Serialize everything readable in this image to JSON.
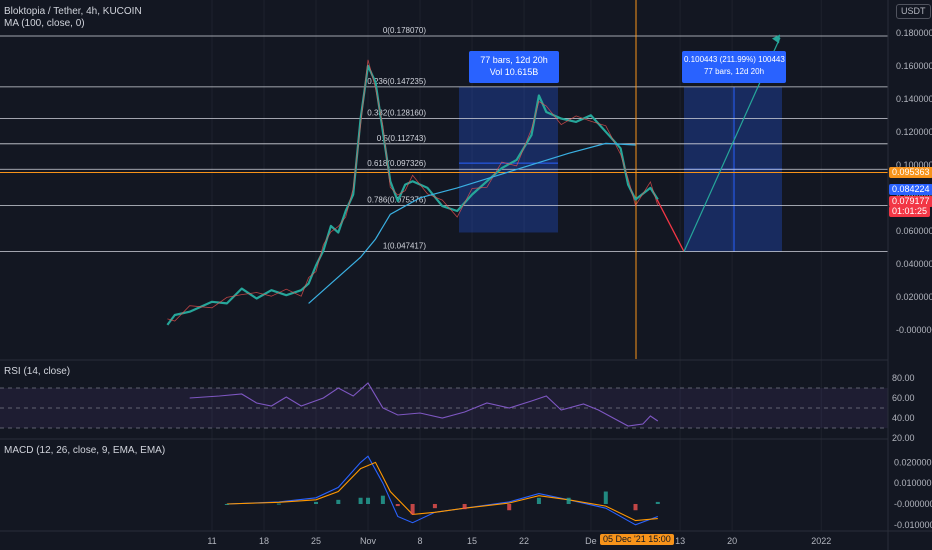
{
  "header": {
    "title": "Bloktopia / Tether, 4h, KUCOIN",
    "ma_label": "MA (100, close, 0)",
    "currency": "USDT"
  },
  "chart_data": [
    {
      "type": "candlestick",
      "title": "Bloktopia / Tether, 4h, KUCOIN",
      "ylabel": "USDT",
      "ylim": [
        -0.01,
        0.184
      ],
      "y_ticks": [
        "0.180000",
        "0.160000",
        "0.140000",
        "0.120000",
        "0.100000",
        "0.080000",
        "0.060000",
        "0.040000",
        "0.020000",
        "-0.000000"
      ],
      "x_ticks": [
        "11",
        "18",
        "25",
        "Nov",
        "8",
        "15",
        "22",
        "De",
        "13",
        "20",
        "2022"
      ],
      "price_path": [
        [
          "Oct 5",
          0.003
        ],
        [
          "Oct 6",
          0.009
        ],
        [
          "Oct 8",
          0.011
        ],
        [
          "Oct 11",
          0.017
        ],
        [
          "Oct 13",
          0.016
        ],
        [
          "Oct 15",
          0.025
        ],
        [
          "Oct 17",
          0.019
        ],
        [
          "Oct 19",
          0.024
        ],
        [
          "Oct 21",
          0.021
        ],
        [
          "Oct 23",
          0.024
        ],
        [
          "Oct 24",
          0.028
        ],
        [
          "Oct 25",
          0.039
        ],
        [
          "Oct 26",
          0.048
        ],
        [
          "Oct 27",
          0.063
        ],
        [
          "Oct 28",
          0.059
        ],
        [
          "Oct 29",
          0.072
        ],
        [
          "Oct 30",
          0.082
        ],
        [
          "Oct 31",
          0.128
        ],
        [
          "Nov 1",
          0.16
        ],
        [
          "Nov 2",
          0.15
        ],
        [
          "Nov 3",
          0.12
        ],
        [
          "Nov 4",
          0.09
        ],
        [
          "Nov 5",
          0.078
        ],
        [
          "Nov 6",
          0.088
        ],
        [
          "Nov 7",
          0.09
        ],
        [
          "Nov 9",
          0.086
        ],
        [
          "Nov 11",
          0.075
        ],
        [
          "Nov 13",
          0.072
        ],
        [
          "Nov 15",
          0.082
        ],
        [
          "Nov 17",
          0.09
        ],
        [
          "Nov 19",
          0.098
        ],
        [
          "Nov 21",
          0.103
        ],
        [
          "Nov 23",
          0.118
        ],
        [
          "Nov 24",
          0.142
        ],
        [
          "Nov 25",
          0.132
        ],
        [
          "Nov 27",
          0.128
        ],
        [
          "Nov 29",
          0.126
        ],
        [
          "Dec 1",
          0.13
        ],
        [
          "Dec 3",
          0.12
        ],
        [
          "Dec 5",
          0.11
        ],
        [
          "Dec 6",
          0.088
        ],
        [
          "Dec 7",
          0.079
        ],
        [
          "Dec 9",
          0.086
        ],
        [
          "Dec 10",
          0.079
        ]
      ],
      "ma_100_path": [
        [
          "Oct 24",
          0.016
        ],
        [
          "Oct 27",
          0.028
        ],
        [
          "Oct 31",
          0.044
        ],
        [
          "Nov 2",
          0.055
        ],
        [
          "Nov 4",
          0.07
        ],
        [
          "Nov 8",
          0.08
        ],
        [
          "Nov 13",
          0.086
        ],
        [
          "Nov 18",
          0.093
        ],
        [
          "Nov 23",
          0.1
        ],
        [
          "Nov 28",
          0.107
        ],
        [
          "Dec 3",
          0.113
        ],
        [
          "Dec 7",
          0.112
        ]
      ],
      "fibonacci": [
        {
          "level": "0",
          "price": "0.178070",
          "value": 0.17807
        },
        {
          "level": "0.236",
          "price": "0.147235",
          "value": 0.147235
        },
        {
          "level": "0.382",
          "price": "0.128160",
          "value": 0.12816
        },
        {
          "level": "0.5",
          "price": "0.112743",
          "value": 0.112743
        },
        {
          "level": "0.618",
          "price": "0.097326",
          "value": 0.097326
        },
        {
          "level": "0.786",
          "price": "0.075376",
          "value": 0.075376
        },
        {
          "level": "1",
          "price": "0.047417",
          "value": 0.047417
        }
      ],
      "price_tags": {
        "hline": {
          "text": "0.095363",
          "value": 0.095363,
          "color": "#f7931a"
        },
        "last": {
          "text": "0.084224",
          "value": 0.084224,
          "color": "#2962ff"
        },
        "current": {
          "text": "0.079177",
          "countdown": "01:01:25",
          "value": 0.079177,
          "color": "#f23645"
        }
      },
      "annotations": {
        "range1": {
          "line1": "77 bars, 12d 20h",
          "line2": "Vol 10.615B"
        },
        "range2": {
          "line1": "0.100443 (211.99%) 100443",
          "line2": "77 bars, 12d 20h"
        }
      },
      "crosshair_label": "05 Dec '21   15:00"
    },
    {
      "type": "line",
      "title": "RSI (14, close)",
      "ylim": [
        20,
        80
      ],
      "y_ticks": [
        "80.00",
        "60.00",
        "40.00",
        "20.00"
      ],
      "band": [
        30,
        70
      ],
      "path": [
        [
          "Oct 8",
          60
        ],
        [
          "Oct 12",
          62
        ],
        [
          "Oct 15",
          64
        ],
        [
          "Oct 17",
          55
        ],
        [
          "Oct 19",
          52
        ],
        [
          "Oct 21",
          61
        ],
        [
          "Oct 23",
          52
        ],
        [
          "Oct 26",
          60
        ],
        [
          "Oct 28",
          70
        ],
        [
          "Oct 30",
          62
        ],
        [
          "Nov 1",
          75
        ],
        [
          "Nov 3",
          50
        ],
        [
          "Nov 5",
          43
        ],
        [
          "Nov 8",
          45
        ],
        [
          "Nov 11",
          40
        ],
        [
          "Nov 14",
          46
        ],
        [
          "Nov 17",
          55
        ],
        [
          "Nov 20",
          50
        ],
        [
          "Nov 23",
          57
        ],
        [
          "Nov 25",
          62
        ],
        [
          "Nov 27",
          48
        ],
        [
          "Nov 30",
          54
        ],
        [
          "Dec 2",
          48
        ],
        [
          "Dec 4",
          40
        ],
        [
          "Dec 6",
          32
        ],
        [
          "Dec 8",
          34
        ],
        [
          "Dec 9",
          42
        ],
        [
          "Dec 10",
          37
        ]
      ]
    },
    {
      "type": "line",
      "title": "MACD (12, 26, close, 9, EMA, EMA)",
      "ylim": [
        -0.0125,
        0.0245
      ],
      "y_ticks": [
        "0.020000",
        "0.010000",
        "-0.000000",
        "-0.010000"
      ],
      "series": [
        {
          "color": "#2962ff",
          "path": [
            [
              "Oct 13",
              0.0
            ],
            [
              "Oct 20",
              0.001
            ],
            [
              "Oct 25",
              0.003
            ],
            [
              "Oct 28",
              0.008
            ],
            [
              "Oct 31",
              0.02
            ],
            [
              "Nov 1",
              0.023
            ],
            [
              "Nov 3",
              0.01
            ],
            [
              "Nov 5",
              -0.006
            ],
            [
              "Nov 7",
              -0.009
            ],
            [
              "Nov 10",
              -0.004
            ],
            [
              "Nov 14",
              -0.002
            ],
            [
              "Nov 20",
              0.001
            ],
            [
              "Nov 24",
              0.005
            ],
            [
              "Nov 28",
              0.002
            ],
            [
              "Dec 3",
              -0.002
            ],
            [
              "Dec 7",
              -0.01
            ],
            [
              "Dec 10",
              -0.006
            ]
          ]
        },
        {
          "color": "#ff9800",
          "path": [
            [
              "Oct 13",
              0.0
            ],
            [
              "Oct 20",
              0.0008
            ],
            [
              "Oct 25",
              0.002
            ],
            [
              "Oct 28",
              0.006
            ],
            [
              "Oct 31",
              0.017
            ],
            [
              "Nov 2",
              0.02
            ],
            [
              "Nov 4",
              0.006
            ],
            [
              "Nov 7",
              -0.005
            ],
            [
              "Nov 10",
              -0.004
            ],
            [
              "Nov 14",
              -0.002
            ],
            [
              "Nov 20",
              0.0005
            ],
            [
              "Nov 24",
              0.004
            ],
            [
              "Nov 28",
              0.002
            ],
            [
              "Dec 3",
              -0.001
            ],
            [
              "Dec 7",
              -0.008
            ],
            [
              "Dec 10",
              -0.007
            ]
          ]
        }
      ]
    }
  ]
}
